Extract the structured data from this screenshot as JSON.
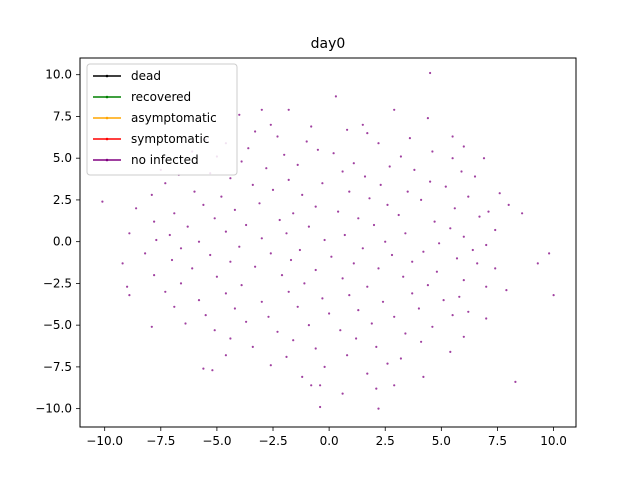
{
  "chart_data": {
    "type": "scatter",
    "title": "day0",
    "xlabel": "",
    "ylabel": "",
    "xlim": [
      -11.1,
      11.0
    ],
    "ylim": [
      -11.1,
      11.0
    ],
    "grid": false,
    "x_ticks": [
      -10.0,
      -7.5,
      -5.0,
      -2.5,
      0.0,
      2.5,
      5.0,
      7.5,
      10.0
    ],
    "x_tick_labels": [
      "−10.0",
      "−7.5",
      "−5.0",
      "−2.5",
      "0.0",
      "2.5",
      "5.0",
      "7.5",
      "10.0"
    ],
    "y_ticks": [
      -10.0,
      -7.5,
      -5.0,
      -2.5,
      0.0,
      2.5,
      5.0,
      7.5,
      10.0
    ],
    "y_tick_labels": [
      "−10.0",
      "−7.5",
      "−5.0",
      "−2.5",
      "0.0",
      "2.5",
      "5.0",
      "7.5",
      "10.0"
    ],
    "legend_position": "top-left",
    "series": [
      {
        "name": "dead",
        "color": "#000000",
        "points": []
      },
      {
        "name": "recovered",
        "color": "#008000",
        "points": []
      },
      {
        "name": "asymptomatic",
        "color": "#ffa500",
        "points": []
      },
      {
        "name": "symptomatic",
        "color": "#ff0000",
        "points": []
      },
      {
        "name": "no infected",
        "color": "#800080",
        "points": [
          [
            4.5,
            10.1
          ],
          [
            0.3,
            8.7
          ],
          [
            -3.0,
            7.9
          ],
          [
            -1.8,
            7.9
          ],
          [
            2.9,
            7.9
          ],
          [
            -4.0,
            7.6
          ],
          [
            4.4,
            7.4
          ],
          [
            -2.6,
            7.0
          ],
          [
            -0.8,
            6.9
          ],
          [
            1.5,
            7.0
          ],
          [
            -3.3,
            6.6
          ],
          [
            0.8,
            6.7
          ],
          [
            5.5,
            6.3
          ],
          [
            -5.5,
            6.1
          ],
          [
            -2.3,
            6.3
          ],
          [
            1.7,
            6.5
          ],
          [
            3.6,
            6.2
          ],
          [
            -4.6,
            5.9
          ],
          [
            -1.0,
            6.0
          ],
          [
            2.2,
            5.9
          ],
          [
            6.0,
            5.7
          ],
          [
            -6.1,
            5.4
          ],
          [
            -3.6,
            5.6
          ],
          [
            -0.5,
            5.5
          ],
          [
            4.6,
            5.4
          ],
          [
            6.9,
            5.0
          ],
          [
            -5.0,
            5.1
          ],
          [
            -2.0,
            5.2
          ],
          [
            0.2,
            5.3
          ],
          [
            3.2,
            5.1
          ],
          [
            5.5,
            5.0
          ],
          [
            -7.5,
            4.3
          ],
          [
            -6.7,
            4.0
          ],
          [
            -3.9,
            4.8
          ],
          [
            -1.4,
            4.6
          ],
          [
            1.1,
            4.7
          ],
          [
            2.7,
            4.5
          ],
          [
            5.9,
            4.2
          ],
          [
            -5.3,
            4.1
          ],
          [
            -2.8,
            4.4
          ],
          [
            0.6,
            4.2
          ],
          [
            3.8,
            4.3
          ],
          [
            6.5,
            3.9
          ],
          [
            -4.4,
            3.8
          ],
          [
            -1.8,
            3.7
          ],
          [
            1.6,
            3.9
          ],
          [
            4.5,
            3.6
          ],
          [
            -7.3,
            3.5
          ],
          [
            -3.4,
            3.4
          ],
          [
            -0.3,
            3.5
          ],
          [
            2.3,
            3.4
          ],
          [
            5.2,
            3.3
          ],
          [
            7.6,
            2.9
          ],
          [
            -6.0,
            3.0
          ],
          [
            -2.5,
            3.1
          ],
          [
            0.9,
            3.0
          ],
          [
            3.5,
            3.0
          ],
          [
            6.2,
            2.7
          ],
          [
            -7.9,
            2.8
          ],
          [
            -4.8,
            2.7
          ],
          [
            -1.2,
            2.8
          ],
          [
            1.8,
            2.6
          ],
          [
            4.1,
            2.5
          ],
          [
            8.0,
            2.2
          ],
          [
            -10.1,
            2.4
          ],
          [
            -8.6,
            2.0
          ],
          [
            -5.6,
            2.2
          ],
          [
            -3.1,
            2.3
          ],
          [
            -0.6,
            2.1
          ],
          [
            2.6,
            2.2
          ],
          [
            5.6,
            2.0
          ],
          [
            7.1,
            1.8
          ],
          [
            -6.9,
            1.7
          ],
          [
            -4.2,
            1.9
          ],
          [
            -1.6,
            1.7
          ],
          [
            0.4,
            1.8
          ],
          [
            3.1,
            1.6
          ],
          [
            6.7,
            1.5
          ],
          [
            8.6,
            1.7
          ],
          [
            -7.8,
            1.2
          ],
          [
            -5.1,
            1.4
          ],
          [
            -2.2,
            1.3
          ],
          [
            1.3,
            1.4
          ],
          [
            4.7,
            1.2
          ],
          [
            -6.3,
            0.9
          ],
          [
            -3.7,
            1.0
          ],
          [
            -0.9,
            0.9
          ],
          [
            2.0,
            1.0
          ],
          [
            5.4,
            0.8
          ],
          [
            7.4,
            0.7
          ],
          [
            -8.9,
            0.5
          ],
          [
            -7.1,
            0.4
          ],
          [
            -4.6,
            0.6
          ],
          [
            -1.9,
            0.5
          ],
          [
            0.7,
            0.4
          ],
          [
            3.4,
            0.5
          ],
          [
            6.0,
            0.3
          ],
          [
            -7.7,
            0.1
          ],
          [
            -5.8,
            0.0
          ],
          [
            -3.0,
            0.2
          ],
          [
            -0.2,
            0.1
          ],
          [
            2.5,
            0.0
          ],
          [
            4.9,
            -0.1
          ],
          [
            7.0,
            -0.2
          ],
          [
            -6.6,
            -0.4
          ],
          [
            -4.0,
            -0.3
          ],
          [
            -1.3,
            -0.5
          ],
          [
            1.5,
            -0.4
          ],
          [
            4.2,
            -0.6
          ],
          [
            6.4,
            -0.5
          ],
          [
            -8.2,
            -0.7
          ],
          [
            -5.3,
            -0.8
          ],
          [
            -2.6,
            -0.7
          ],
          [
            0.1,
            -0.9
          ],
          [
            2.8,
            -0.8
          ],
          [
            5.7,
            -1.0
          ],
          [
            -7.0,
            -1.1
          ],
          [
            -4.4,
            -1.2
          ],
          [
            -1.7,
            -1.1
          ],
          [
            1.1,
            -1.3
          ],
          [
            3.7,
            -1.2
          ],
          [
            6.6,
            -1.3
          ],
          [
            -9.2,
            -1.3
          ],
          [
            9.3,
            -1.3
          ],
          [
            9.8,
            -0.7
          ],
          [
            -6.1,
            -1.6
          ],
          [
            -3.3,
            -1.5
          ],
          [
            -0.6,
            -1.7
          ],
          [
            2.2,
            -1.6
          ],
          [
            4.8,
            -1.8
          ],
          [
            7.4,
            -1.6
          ],
          [
            -7.8,
            -2.0
          ],
          [
            -5.0,
            -2.1
          ],
          [
            -2.1,
            -2.0
          ],
          [
            0.6,
            -2.2
          ],
          [
            3.3,
            -2.1
          ],
          [
            6.0,
            -2.3
          ],
          [
            -6.6,
            -2.5
          ],
          [
            -3.9,
            -2.6
          ],
          [
            -1.1,
            -2.5
          ],
          [
            1.7,
            -2.7
          ],
          [
            4.4,
            -2.6
          ],
          [
            7.0,
            -2.7
          ],
          [
            -9.0,
            -2.7
          ],
          [
            -8.9,
            -3.2
          ],
          [
            -7.3,
            -3.0
          ],
          [
            -4.6,
            -3.1
          ],
          [
            -1.8,
            -3.0
          ],
          [
            0.9,
            -3.2
          ],
          [
            3.7,
            -3.1
          ],
          [
            5.8,
            -3.3
          ],
          [
            7.9,
            -2.9
          ],
          [
            10.0,
            -3.2
          ],
          [
            -5.8,
            -3.5
          ],
          [
            -3.0,
            -3.6
          ],
          [
            -0.3,
            -3.4
          ],
          [
            2.4,
            -3.6
          ],
          [
            5.1,
            -3.5
          ],
          [
            -6.9,
            -3.9
          ],
          [
            -4.2,
            -4.0
          ],
          [
            -1.4,
            -3.9
          ],
          [
            1.3,
            -4.1
          ],
          [
            4.0,
            -4.0
          ],
          [
            6.2,
            -4.2
          ],
          [
            -5.5,
            -4.4
          ],
          [
            -2.7,
            -4.5
          ],
          [
            0.0,
            -4.3
          ],
          [
            2.9,
            -4.5
          ],
          [
            5.5,
            -4.4
          ],
          [
            -6.4,
            -4.9
          ],
          [
            -3.7,
            -4.8
          ],
          [
            -0.9,
            -5.0
          ],
          [
            1.9,
            -4.9
          ],
          [
            4.6,
            -5.1
          ],
          [
            7.0,
            -4.6
          ],
          [
            -7.9,
            -5.1
          ],
          [
            -5.1,
            -5.3
          ],
          [
            -2.3,
            -5.4
          ],
          [
            0.5,
            -5.3
          ],
          [
            3.4,
            -5.5
          ],
          [
            -4.4,
            -5.8
          ],
          [
            -1.6,
            -5.9
          ],
          [
            1.2,
            -5.8
          ],
          [
            4.1,
            -6.0
          ],
          [
            6.0,
            -5.7
          ],
          [
            -3.4,
            -6.3
          ],
          [
            -0.6,
            -6.4
          ],
          [
            2.1,
            -6.3
          ],
          [
            5.4,
            -6.6
          ],
          [
            -4.6,
            -6.8
          ],
          [
            -1.9,
            -6.9
          ],
          [
            0.8,
            -6.8
          ],
          [
            3.2,
            -7.0
          ],
          [
            -5.6,
            -7.6
          ],
          [
            -2.6,
            -7.4
          ],
          [
            -0.2,
            -7.5
          ],
          [
            2.6,
            -7.3
          ],
          [
            -5.2,
            -7.7
          ],
          [
            -1.2,
            -8.1
          ],
          [
            1.7,
            -7.9
          ],
          [
            4.2,
            -8.1
          ],
          [
            8.3,
            -8.4
          ],
          [
            -0.8,
            -8.6
          ],
          [
            -0.4,
            -8.6
          ],
          [
            2.1,
            -8.8
          ],
          [
            2.9,
            -8.6
          ],
          [
            0.6,
            -9.1
          ],
          [
            -0.4,
            -9.9
          ],
          [
            2.2,
            -10.0
          ]
        ]
      }
    ]
  }
}
